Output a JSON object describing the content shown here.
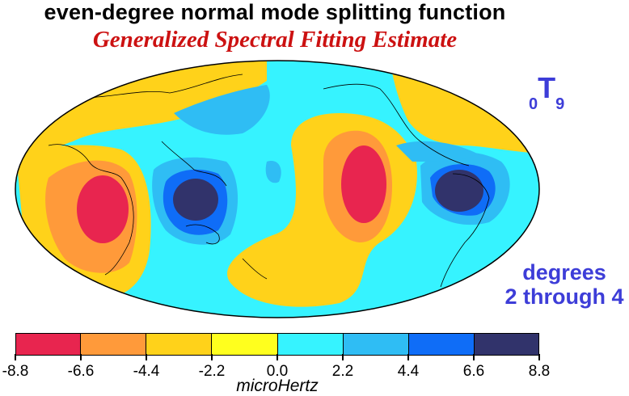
{
  "title": "even-degree normal mode splitting function",
  "subtitle": "Generalized Spectral Fitting Estimate",
  "mode": {
    "prefix": "0",
    "letter": "T",
    "suffix": "9"
  },
  "degrees_line1": "degrees",
  "degrees_line2": "2 through 4",
  "map": {
    "projection": "Hammer"
  },
  "colorbar": {
    "colors": [
      "#e8254f",
      "#ff9a3a",
      "#ffd21a",
      "#ffff1e",
      "#36f3ff",
      "#2fbdf4",
      "#0f6df7",
      "#31336b"
    ],
    "tick_labels": [
      "-8.8",
      "-6.6",
      "-4.4",
      "-2.2",
      "0.0",
      "2.2",
      "4.4",
      "6.6",
      "8.8"
    ],
    "unit": "microHertz"
  }
}
